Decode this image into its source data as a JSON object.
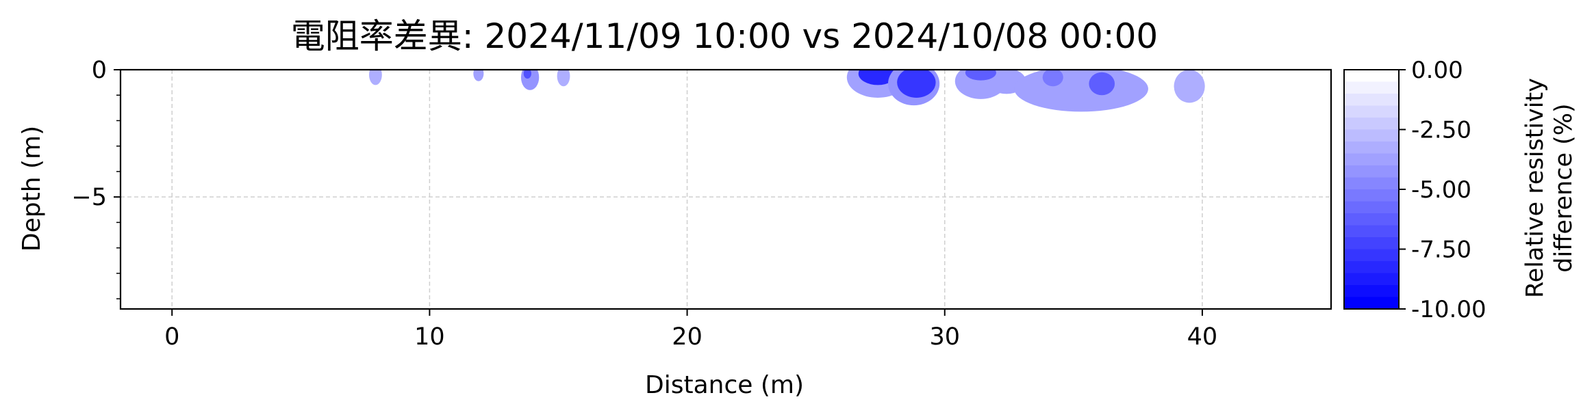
{
  "chart_data": {
    "type": "contour",
    "title": "電阻率差異: 2024/11/09 10:00 vs 2024/10/08 00:00",
    "xlabel": "Distance (m)",
    "ylabel": "Depth (m)",
    "xlim": [
      -2,
      45
    ],
    "ylim": [
      -9.4,
      0
    ],
    "xticks": [
      0,
      10,
      20,
      30,
      40
    ],
    "yticks": [
      0,
      -5
    ],
    "ytick_labels": [
      "0",
      "−5"
    ],
    "grid": true,
    "colorbar": {
      "label_line1": "Relative resistivity",
      "label_line2": "difference (%)",
      "range": [
        -10,
        0
      ],
      "ticks": [
        0,
        -2.5,
        -5,
        -7.5,
        -10
      ],
      "tick_labels": [
        "0.00",
        "-2.50",
        "-5.00",
        "-7.50",
        "-10.00"
      ],
      "color_low": "#0000ff",
      "color_high": "#ffffff",
      "levels": 20
    },
    "anomalies": [
      {
        "x": 7.9,
        "depth": 0.2,
        "rx": 0.25,
        "rd": 0.4,
        "value": -3.5
      },
      {
        "x": 11.9,
        "depth": 0.15,
        "rx": 0.2,
        "rd": 0.3,
        "value": -4
      },
      {
        "x": 13.9,
        "depth": 0.3,
        "rx": 0.35,
        "rd": 0.5,
        "value": -4.5
      },
      {
        "x": 13.8,
        "depth": 0.15,
        "rx": 0.15,
        "rd": 0.2,
        "value": -7
      },
      {
        "x": 15.2,
        "depth": 0.25,
        "rx": 0.25,
        "rd": 0.4,
        "value": -3.5
      },
      {
        "x": 27.4,
        "depth": 0.3,
        "rx": 1.2,
        "rd": 0.8,
        "value": -4
      },
      {
        "x": 27.4,
        "depth": 0.15,
        "rx": 0.75,
        "rd": 0.45,
        "value": -8.5
      },
      {
        "x": 28.8,
        "depth": 0.55,
        "rx": 1.0,
        "rd": 0.85,
        "value": -4.5
      },
      {
        "x": 28.9,
        "depth": 0.5,
        "rx": 0.75,
        "rd": 0.6,
        "value": -8
      },
      {
        "x": 31.4,
        "depth": 0.45,
        "rx": 1.0,
        "rd": 0.7,
        "value": -4
      },
      {
        "x": 32.4,
        "depth": 0.45,
        "rx": 0.75,
        "rd": 0.5,
        "value": -4
      },
      {
        "x": 31.4,
        "depth": 0.12,
        "rx": 0.6,
        "rd": 0.3,
        "value": -6.5
      },
      {
        "x": 35.3,
        "depth": 0.75,
        "rx": 2.6,
        "rd": 0.9,
        "value": -4
      },
      {
        "x": 34.2,
        "depth": 0.3,
        "rx": 0.4,
        "rd": 0.35,
        "value": -5.5
      },
      {
        "x": 36.1,
        "depth": 0.55,
        "rx": 0.5,
        "rd": 0.45,
        "value": -6.5
      },
      {
        "x": 39.5,
        "depth": 0.65,
        "rx": 0.6,
        "rd": 0.65,
        "value": -3.5
      }
    ]
  }
}
